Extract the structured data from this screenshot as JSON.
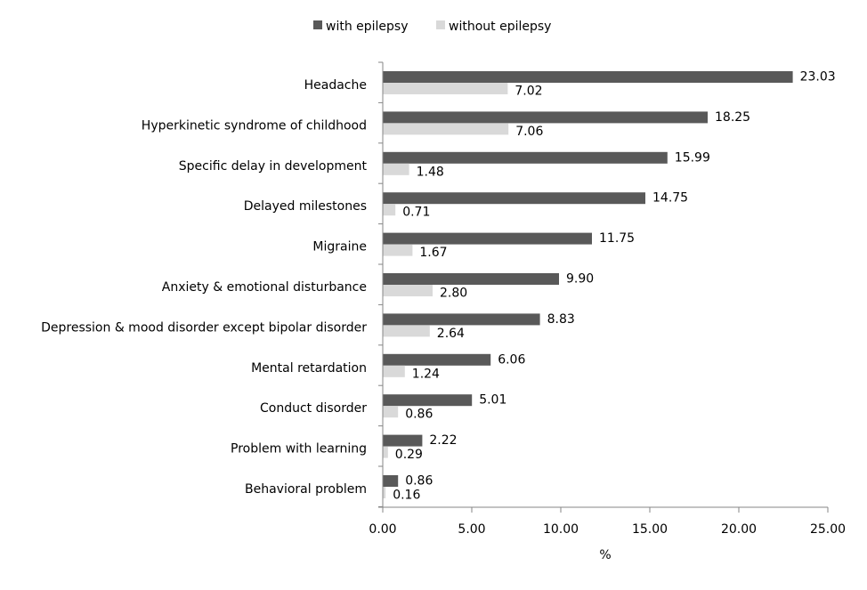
{
  "chart_data": {
    "type": "bar",
    "orientation": "horizontal",
    "title": "",
    "xlabel": "%",
    "ylabel": "",
    "xlim": [
      0,
      25
    ],
    "x_ticks": [
      "0.00",
      "5.00",
      "10.00",
      "15.00",
      "20.00",
      "25.00"
    ],
    "legend_position": "top-center",
    "categories": [
      "Headache",
      "Hyperkinetic syndrome of childhood",
      "Specific delay in development",
      "Delayed milestones",
      "Migraine",
      "Anxiety & emotional disturbance",
      "Depression & mood disorder except bipolar disorder",
      "Mental retardation",
      "Conduct disorder",
      "Problem with learning",
      "Behavioral problem"
    ],
    "series": [
      {
        "name": "with epilepsy",
        "color": "#595959",
        "values": [
          23.03,
          18.25,
          15.99,
          14.75,
          11.75,
          9.9,
          8.83,
          6.06,
          5.01,
          2.22,
          0.86
        ],
        "labels": [
          "23.03",
          "18.25",
          "15.99",
          "14.75",
          "11.75",
          "9.90",
          "8.83",
          "6.06",
          "5.01",
          "2.22",
          "0.86"
        ]
      },
      {
        "name": "without epilepsy",
        "color": "#d9d9d9",
        "values": [
          7.02,
          7.06,
          1.48,
          0.71,
          1.67,
          2.8,
          2.64,
          1.24,
          0.86,
          0.29,
          0.16
        ],
        "labels": [
          "7.02",
          "7.06",
          "1.48",
          "0.71",
          "1.67",
          "2.80",
          "2.64",
          "1.24",
          "0.86",
          "0.29",
          "0.16"
        ]
      }
    ]
  }
}
